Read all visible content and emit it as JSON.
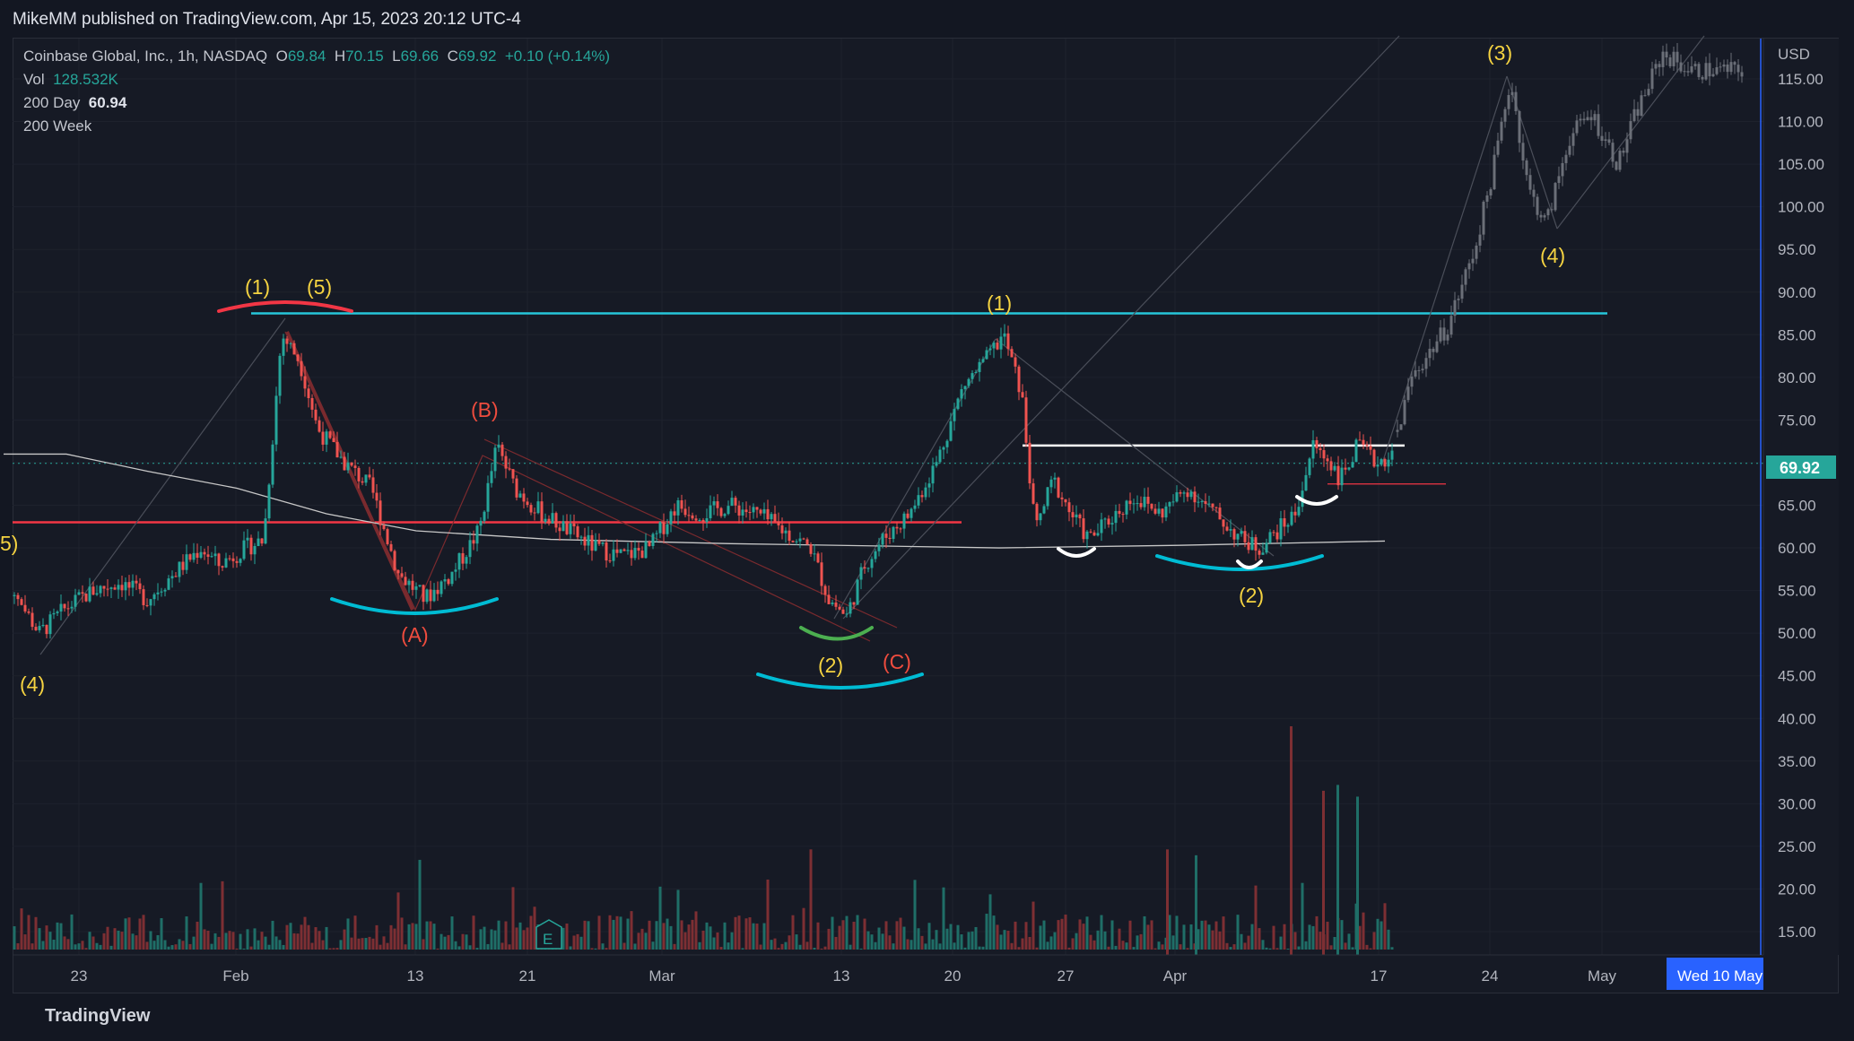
{
  "publisher_line": "MikeMM published on TradingView.com, Apr 15, 2023 20:12 UTC-4",
  "legend": {
    "symbol": "Coinbase Global, Inc., 1h, NASDAQ",
    "o_label": "O",
    "o_value": "69.84",
    "h_label": "H",
    "h_value": "70.15",
    "l_label": "L",
    "l_value": "69.66",
    "c_label": "C",
    "c_value": "69.92",
    "change": "+0.10 (+0.14%)",
    "vol_label": "Vol",
    "vol_value": "128.532K",
    "ma200d_label": "200 Day",
    "ma200d_value": "60.94",
    "ma200w_label": "200 Week"
  },
  "branding": "TradingView",
  "chart_data": {
    "type": "candlestick",
    "currency": "USD",
    "last_price": "69.92",
    "ylim": [
      12,
      122
    ],
    "y_ticks": [
      "115.00",
      "110.00",
      "105.00",
      "100.00",
      "95.00",
      "90.00",
      "85.00",
      "80.00",
      "75.00",
      "70.00",
      "65.00",
      "60.00",
      "55.00",
      "50.00",
      "45.00",
      "40.00",
      "35.00",
      "30.00",
      "25.00",
      "20.00",
      "15.00"
    ],
    "x_ticks": [
      "23",
      "Feb",
      "13",
      "21",
      "Mar",
      "13",
      "20",
      "27",
      "Apr",
      "17",
      "24",
      "May"
    ],
    "x_highlight": "Wed 10 May",
    "price_path": [
      [
        -30,
        59
      ],
      [
        0,
        55
      ],
      [
        30,
        50
      ],
      [
        60,
        53
      ],
      [
        90,
        55
      ],
      [
        120,
        56
      ],
      [
        150,
        54
      ],
      [
        180,
        57
      ],
      [
        210,
        60
      ],
      [
        230,
        58
      ],
      [
        260,
        60
      ],
      [
        280,
        61
      ],
      [
        300,
        85
      ],
      [
        320,
        82
      ],
      [
        340,
        74
      ],
      [
        370,
        70
      ],
      [
        400,
        67
      ],
      [
        430,
        57
      ],
      [
        460,
        54
      ],
      [
        490,
        57
      ],
      [
        520,
        62
      ],
      [
        540,
        72
      ],
      [
        560,
        67
      ],
      [
        590,
        64
      ],
      [
        620,
        62
      ],
      [
        650,
        60
      ],
      [
        680,
        59
      ],
      [
        710,
        60
      ],
      [
        740,
        65
      ],
      [
        770,
        64
      ],
      [
        800,
        65
      ],
      [
        830,
        64
      ],
      [
        860,
        62
      ],
      [
        890,
        60
      ],
      [
        910,
        54
      ],
      [
        930,
        52
      ],
      [
        950,
        58
      ],
      [
        970,
        61
      ],
      [
        1000,
        64
      ],
      [
        1030,
        70
      ],
      [
        1060,
        79
      ],
      [
        1085,
        82
      ],
      [
        1105,
        85
      ],
      [
        1125,
        78
      ],
      [
        1140,
        62
      ],
      [
        1160,
        68
      ],
      [
        1180,
        64
      ],
      [
        1200,
        61
      ],
      [
        1220,
        63
      ],
      [
        1250,
        66
      ],
      [
        1280,
        64
      ],
      [
        1310,
        67
      ],
      [
        1340,
        64
      ],
      [
        1370,
        61
      ],
      [
        1390,
        60
      ],
      [
        1410,
        62
      ],
      [
        1430,
        64
      ],
      [
        1450,
        72
      ],
      [
        1470,
        70
      ],
      [
        1480,
        68
      ],
      [
        1500,
        72
      ],
      [
        1520,
        70
      ],
      [
        1540,
        71
      ]
    ],
    "projection_path": [
      [
        1540,
        72
      ],
      [
        1560,
        80
      ],
      [
        1600,
        86
      ],
      [
        1630,
        95
      ],
      [
        1650,
        104
      ],
      [
        1670,
        115
      ],
      [
        1690,
        102
      ],
      [
        1710,
        98
      ],
      [
        1735,
        108
      ],
      [
        1760,
        111
      ],
      [
        1790,
        105
      ],
      [
        1810,
        111
      ],
      [
        1840,
        118
      ],
      [
        1870,
        116
      ],
      [
        1900,
        116
      ],
      [
        1930,
        116
      ]
    ],
    "ma_200day_path": [
      [
        -10,
        71
      ],
      [
        60,
        71
      ],
      [
        150,
        69
      ],
      [
        250,
        67
      ],
      [
        350,
        64
      ],
      [
        450,
        62
      ],
      [
        600,
        61
      ],
      [
        800,
        60.5
      ],
      [
        1100,
        60
      ],
      [
        1300,
        60.3
      ],
      [
        1530,
        60.8
      ]
    ],
    "volume": {
      "max": 39,
      "spike_values": [
        39,
        29,
        28,
        27,
        18,
        17
      ]
    },
    "levels": {
      "resistance_cyan": 87.5,
      "support_red": 63,
      "neckline_white": 72,
      "red_short": 67.5
    },
    "wave_labels": {
      "yellow": [
        "(1)",
        "(5)",
        "(1)",
        "(2)",
        "(2)",
        "(3)",
        "(4)",
        "(4)",
        "5)"
      ],
      "red": [
        "(B)",
        "(A)",
        "(C)"
      ]
    },
    "earnings_marker": "E"
  }
}
